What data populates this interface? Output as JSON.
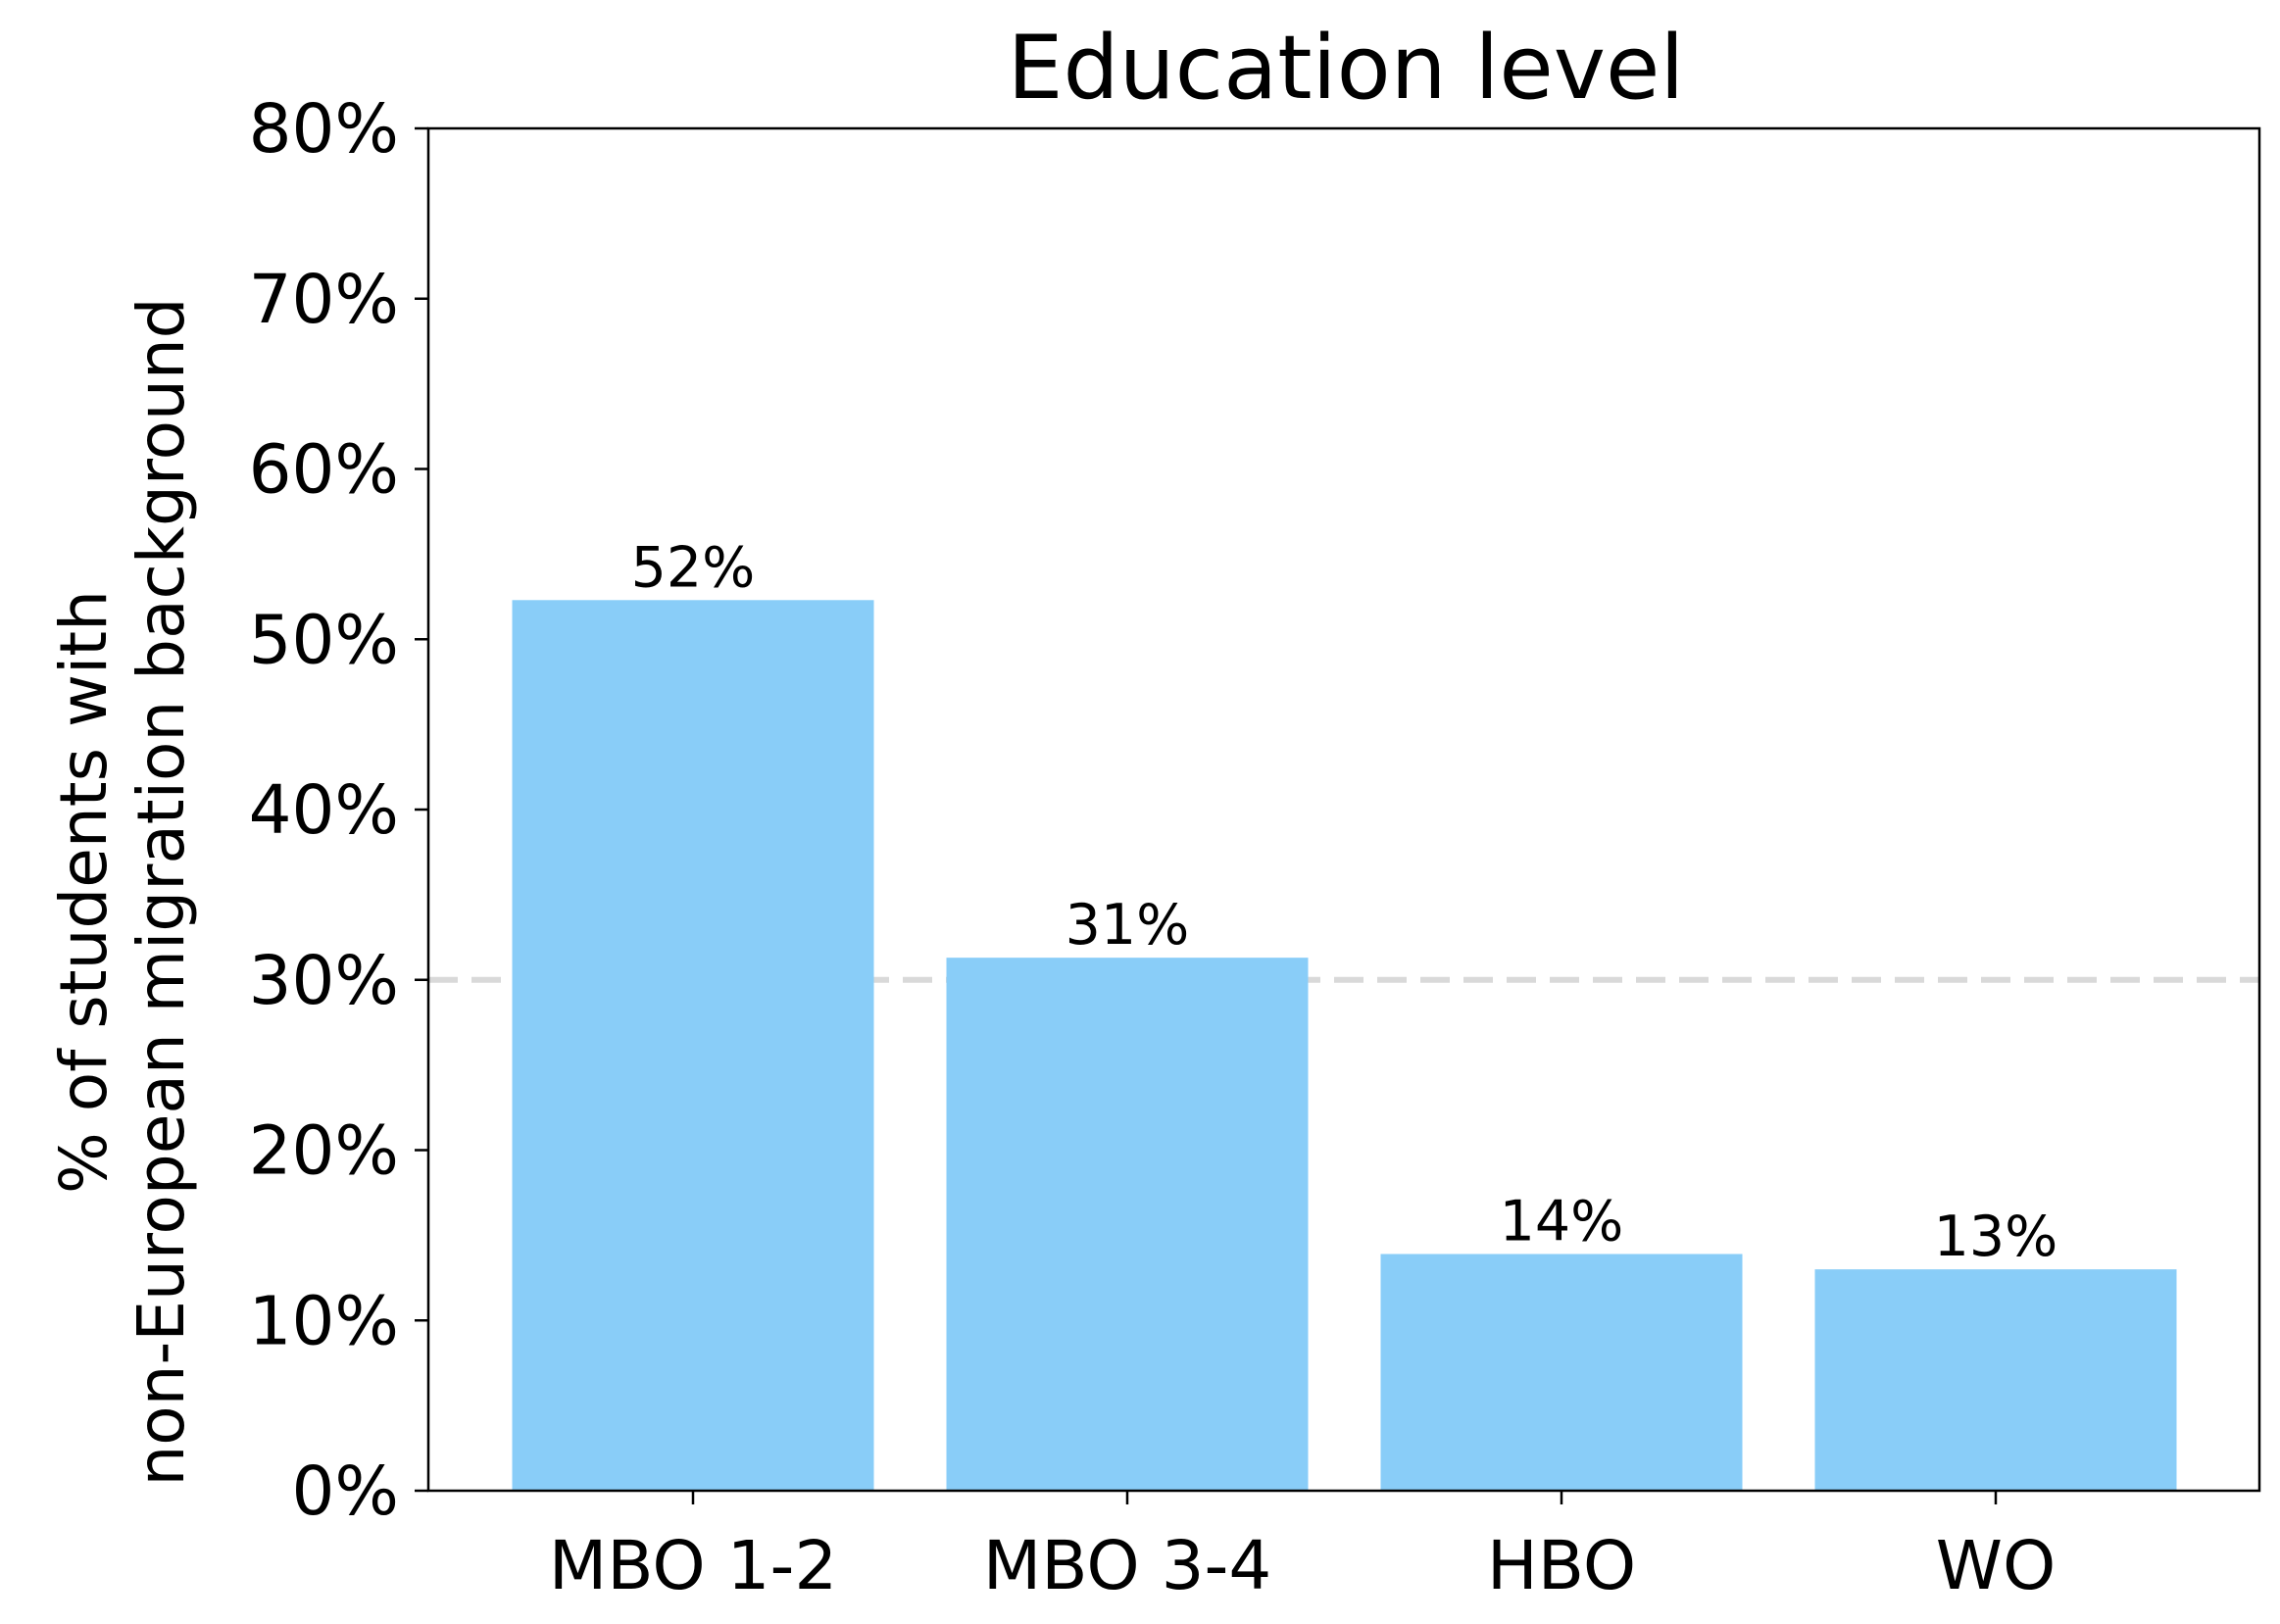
{
  "chart_data": {
    "type": "bar",
    "title": "Education level",
    "ylabel_lines": [
      "% of students with",
      "non-European migration background"
    ],
    "xlabel": "",
    "categories": [
      "MBO 1-2",
      "MBO 3-4",
      "HBO",
      "WO"
    ],
    "values": [
      52.3,
      31.3,
      13.9,
      13.0
    ],
    "data_labels": [
      "52%",
      "31%",
      "14%",
      "13%"
    ],
    "ylim": [
      0,
      80
    ],
    "yticks": [
      0,
      10,
      20,
      30,
      40,
      50,
      60,
      70,
      80
    ],
    "ytick_labels": [
      "0%",
      "10%",
      "20%",
      "30%",
      "40%",
      "50%",
      "60%",
      "70%",
      "80%"
    ],
    "reference_line": {
      "value": 30,
      "style": "dashed",
      "color": "#d9d9d9"
    },
    "bar_color": "#89cdf8",
    "grid": false,
    "legend": "none"
  }
}
